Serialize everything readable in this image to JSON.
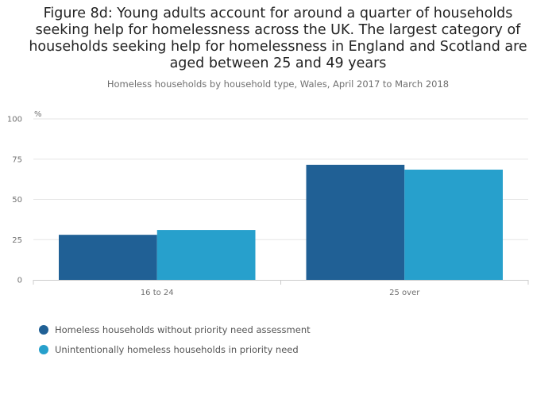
{
  "chart_data": {
    "type": "bar",
    "title": "Figure 8d: Young adults account for around a quarter of households seeking help for homelessness across the UK. The largest category of households seeking help for homelessness in England and Scotland are aged between 25 and 49 years",
    "subtitle": "Homeless households by household type, Wales, April 2017 to March 2018",
    "ylabel": "%",
    "xlabel": "",
    "ylim": [
      0,
      100
    ],
    "yticks": [
      0,
      25,
      50,
      75,
      100
    ],
    "categories": [
      "16 to 24",
      "25 over"
    ],
    "series": [
      {
        "name": "Homeless households without priority need assessment",
        "color": "#206095",
        "values": [
          28,
          71.5
        ]
      },
      {
        "name": "Unintentionally homeless households in priority need",
        "color": "#27a0cc",
        "values": [
          31,
          68.5
        ]
      }
    ],
    "grid": true,
    "legend_position": "bottom-left"
  }
}
